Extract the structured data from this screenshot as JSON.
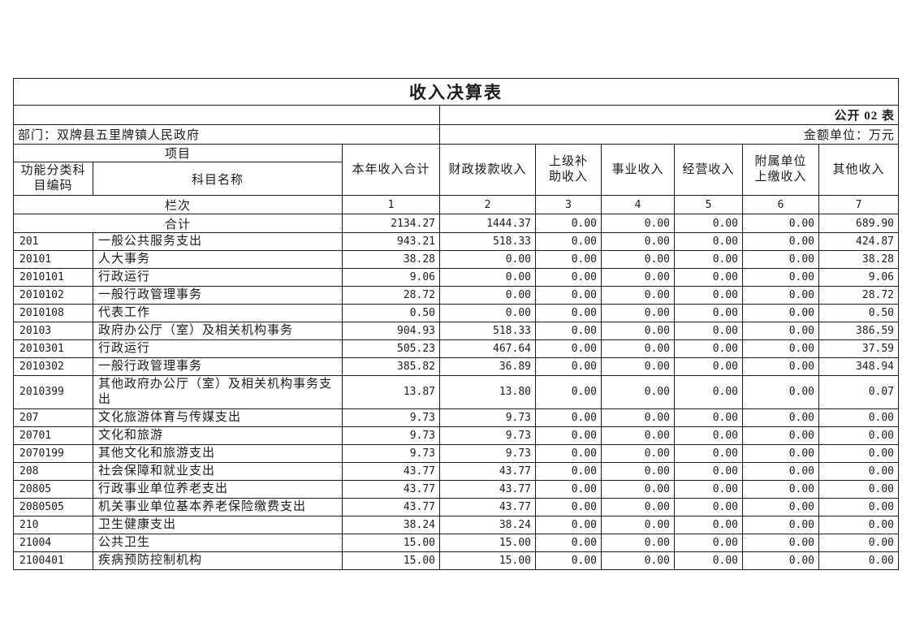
{
  "page": {
    "title": "收入决算表",
    "table_label": "公开 02 表",
    "department": "部门：双牌县五里牌镇人民政府",
    "unit": "金额单位：万元"
  },
  "header": {
    "group_label": "项目",
    "code_label": "功能分类科\n目编码",
    "name_label": "科目名称",
    "columns": [
      "本年收入合计",
      "财政拨款收入",
      "上级补\n助收入",
      "事业收入",
      "经营收入",
      "附属单位\n上缴收入",
      "其他收入"
    ],
    "lanci_label": "栏次",
    "column_numbers": [
      "1",
      "2",
      "3",
      "4",
      "5",
      "6",
      "7"
    ]
  },
  "total_row": {
    "label": "合计",
    "values": [
      "2134.27",
      "1444.37",
      "0.00",
      "0.00",
      "0.00",
      "0.00",
      "689.90"
    ]
  },
  "rows": [
    {
      "code": "201",
      "name": "一般公共服务支出",
      "values": [
        "943.21",
        "518.33",
        "0.00",
        "0.00",
        "0.00",
        "0.00",
        "424.87"
      ]
    },
    {
      "code": "20101",
      "name": "人大事务",
      "values": [
        "38.28",
        "0.00",
        "0.00",
        "0.00",
        "0.00",
        "0.00",
        "38.28"
      ]
    },
    {
      "code": "2010101",
      "name": "行政运行",
      "values": [
        "9.06",
        "0.00",
        "0.00",
        "0.00",
        "0.00",
        "0.00",
        "9.06"
      ]
    },
    {
      "code": "2010102",
      "name": "一般行政管理事务",
      "values": [
        "28.72",
        "0.00",
        "0.00",
        "0.00",
        "0.00",
        "0.00",
        "28.72"
      ]
    },
    {
      "code": "2010108",
      "name": "代表工作",
      "values": [
        "0.50",
        "0.00",
        "0.00",
        "0.00",
        "0.00",
        "0.00",
        "0.50"
      ]
    },
    {
      "code": "20103",
      "name": "政府办公厅（室）及相关机构事务",
      "values": [
        "904.93",
        "518.33",
        "0.00",
        "0.00",
        "0.00",
        "0.00",
        "386.59"
      ]
    },
    {
      "code": "2010301",
      "name": "行政运行",
      "values": [
        "505.23",
        "467.64",
        "0.00",
        "0.00",
        "0.00",
        "0.00",
        "37.59"
      ]
    },
    {
      "code": "2010302",
      "name": "一般行政管理事务",
      "values": [
        "385.82",
        "36.89",
        "0.00",
        "0.00",
        "0.00",
        "0.00",
        "348.94"
      ]
    },
    {
      "code": "2010399",
      "name": "其他政府办公厅（室）及相关机构事务支出",
      "values": [
        "13.87",
        "13.80",
        "0.00",
        "0.00",
        "0.00",
        "0.00",
        "0.07"
      ]
    },
    {
      "code": "207",
      "name": "文化旅游体育与传媒支出",
      "values": [
        "9.73",
        "9.73",
        "0.00",
        "0.00",
        "0.00",
        "0.00",
        "0.00"
      ]
    },
    {
      "code": "20701",
      "name": "文化和旅游",
      "values": [
        "9.73",
        "9.73",
        "0.00",
        "0.00",
        "0.00",
        "0.00",
        "0.00"
      ]
    },
    {
      "code": "2070199",
      "name": "其他文化和旅游支出",
      "values": [
        "9.73",
        "9.73",
        "0.00",
        "0.00",
        "0.00",
        "0.00",
        "0.00"
      ]
    },
    {
      "code": "208",
      "name": "社会保障和就业支出",
      "values": [
        "43.77",
        "43.77",
        "0.00",
        "0.00",
        "0.00",
        "0.00",
        "0.00"
      ]
    },
    {
      "code": "20805",
      "name": "行政事业单位养老支出",
      "values": [
        "43.77",
        "43.77",
        "0.00",
        "0.00",
        "0.00",
        "0.00",
        "0.00"
      ]
    },
    {
      "code": "2080505",
      "name": "机关事业单位基本养老保险缴费支出",
      "values": [
        "43.77",
        "43.77",
        "0.00",
        "0.00",
        "0.00",
        "0.00",
        "0.00"
      ]
    },
    {
      "code": "210",
      "name": "卫生健康支出",
      "values": [
        "38.24",
        "38.24",
        "0.00",
        "0.00",
        "0.00",
        "0.00",
        "0.00"
      ]
    },
    {
      "code": "21004",
      "name": "公共卫生",
      "values": [
        "15.00",
        "15.00",
        "0.00",
        "0.00",
        "0.00",
        "0.00",
        "0.00"
      ]
    },
    {
      "code": "2100401",
      "name": "疾病预防控制机构",
      "values": [
        "15.00",
        "15.00",
        "0.00",
        "0.00",
        "0.00",
        "0.00",
        "0.00"
      ]
    }
  ]
}
